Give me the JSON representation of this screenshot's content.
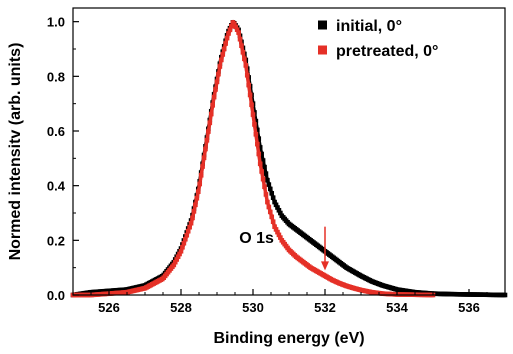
{
  "chart_data": {
    "type": "line",
    "title": "",
    "xlabel": "Binding energy (eV)",
    "ylabel": "Normed intensitv (arb. units)",
    "xlim": [
      525,
      537
    ],
    "ylim": [
      0,
      1.05
    ],
    "xticks": [
      526,
      528,
      530,
      532,
      534,
      536
    ],
    "xtick_labels": [
      "526",
      "528",
      "530",
      "532",
      "534",
      "536"
    ],
    "yticks": [
      0.0,
      0.2,
      0.4,
      0.6,
      0.8,
      1.0
    ],
    "ytick_labels": [
      "0.0",
      "0.2",
      "0.4",
      "0.6",
      "0.8",
      "1.0"
    ],
    "grid": false,
    "legend_position": "top-right",
    "annotations": [
      {
        "text": "O 1s",
        "x": 530.1,
        "y": 0.19
      },
      {
        "type": "arrow",
        "color": "#e53027",
        "from": [
          532.0,
          0.25
        ],
        "to": [
          532.0,
          0.09
        ]
      }
    ],
    "series": [
      {
        "name": "initial, 0°",
        "color": "#000000",
        "marker": "square",
        "x": [
          525.0,
          525.5,
          526.0,
          526.5,
          527.0,
          527.5,
          527.8,
          528.0,
          528.3,
          528.5,
          528.7,
          528.9,
          529.1,
          529.3,
          529.45,
          529.6,
          529.8,
          530.0,
          530.2,
          530.4,
          530.6,
          530.8,
          531.0,
          531.2,
          531.4,
          531.6,
          531.8,
          532.0,
          532.2,
          532.4,
          532.6,
          532.8,
          533.0,
          533.3,
          533.6,
          534.0,
          534.5,
          535.0,
          535.5,
          536.0,
          536.5,
          537.0
        ],
        "y": [
          0.0,
          0.01,
          0.015,
          0.02,
          0.035,
          0.07,
          0.12,
          0.17,
          0.28,
          0.4,
          0.56,
          0.72,
          0.86,
          0.96,
          1.0,
          0.97,
          0.86,
          0.7,
          0.54,
          0.42,
          0.34,
          0.29,
          0.26,
          0.24,
          0.22,
          0.2,
          0.18,
          0.16,
          0.14,
          0.12,
          0.1,
          0.085,
          0.07,
          0.05,
          0.035,
          0.02,
          0.01,
          0.005,
          0.003,
          0.002,
          0.001,
          0.0
        ]
      },
      {
        "name": "pretreated, 0°",
        "color": "#e53027",
        "marker": "square",
        "x": [
          525.0,
          525.5,
          526.0,
          526.5,
          527.0,
          527.5,
          527.8,
          528.0,
          528.3,
          528.5,
          528.7,
          528.9,
          529.1,
          529.3,
          529.45,
          529.6,
          529.8,
          530.0,
          530.2,
          530.4,
          530.6,
          530.8,
          531.0,
          531.2,
          531.4,
          531.6,
          531.8,
          532.0,
          532.2,
          532.4,
          532.6,
          532.8,
          533.0,
          533.3,
          533.6,
          534.0,
          534.5,
          535.0
        ],
        "y": [
          0.0,
          0.0,
          0.005,
          0.01,
          0.025,
          0.06,
          0.11,
          0.16,
          0.27,
          0.39,
          0.55,
          0.71,
          0.85,
          0.95,
          1.0,
          0.96,
          0.84,
          0.66,
          0.48,
          0.34,
          0.25,
          0.2,
          0.165,
          0.14,
          0.12,
          0.1,
          0.085,
          0.07,
          0.055,
          0.043,
          0.033,
          0.025,
          0.018,
          0.01,
          0.005,
          0.002,
          0.001,
          0.0
        ]
      }
    ]
  }
}
